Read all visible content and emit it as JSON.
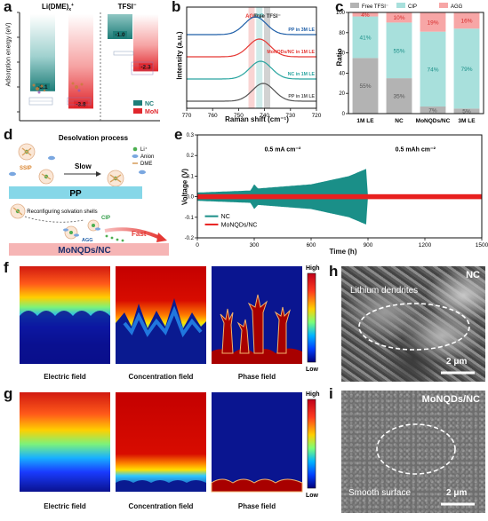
{
  "panels": {
    "a": "a",
    "b": "b",
    "c": "c",
    "d": "d",
    "e": "e",
    "f": "f",
    "g": "g",
    "h": "h",
    "i": "i"
  },
  "panel_a": {
    "ylabel": "Adsorption energy (eV)",
    "group1": "Li(DME)",
    "group1_sub": "x",
    "group1_sup": "+",
    "group2": "TFSI",
    "group2_sup": "−",
    "bars": [
      {
        "group": "Li(DME)x+",
        "material": "NC",
        "value": -3.1,
        "label": "-3.1"
      },
      {
        "group": "Li(DME)x+",
        "material": "MoN",
        "value": -3.8,
        "label": "-3.8"
      },
      {
        "group": "TFSI-",
        "material": "NC",
        "value": -1.0,
        "label": "-1.0"
      },
      {
        "group": "TFSI-",
        "material": "MoN",
        "value": -2.3,
        "label": "-2.3"
      }
    ],
    "legend": [
      "NC",
      "MoN"
    ],
    "colors": {
      "NC": "#2f8f8a",
      "MoN": "#e8363c"
    }
  },
  "chart_data": [
    {
      "type": "line",
      "title": "",
      "xlabel": "Raman shift (cm⁻¹)",
      "ylabel": "Intensity (a.u.)",
      "xlim": [
        770,
        720
      ],
      "xticks": [
        "770",
        "760",
        "750",
        "740",
        "730",
        "720"
      ],
      "bands": [
        {
          "name": "AGG",
          "x": 745,
          "color": "#e53935"
        },
        {
          "name": "CIP",
          "x": 742,
          "color": "#2aa5a0"
        },
        {
          "name": "Free TFSI⁻",
          "x": 739,
          "color": "#333333"
        }
      ],
      "series": [
        {
          "name": "PP in 3M LE",
          "peak": 743.5,
          "offset": 3,
          "color": "#1f5fa8"
        },
        {
          "name": "MoNQDs/NC in 1M LE",
          "peak": 742.0,
          "offset": 2,
          "color": "#e53935"
        },
        {
          "name": "NC in 1M LE",
          "peak": 741.5,
          "offset": 1,
          "color": "#2aa5a0"
        },
        {
          "name": "PP in 1M LE",
          "peak": 740.5,
          "offset": 0,
          "color": "#555555"
        }
      ]
    },
    {
      "type": "bar",
      "stacked": true,
      "xlabel": "",
      "ylabel": "Ratio",
      "ylim": [
        0,
        100
      ],
      "yticks": [
        "0",
        "20",
        "40",
        "60",
        "80",
        "100"
      ],
      "categories": [
        "1M LE",
        "NC",
        "MoNQDs/NC",
        "3M LE"
      ],
      "series": [
        {
          "name": "Free TFSI⁻",
          "values": [
            55,
            35,
            7,
            5
          ],
          "labels": [
            "55%",
            "35%",
            "7%",
            "5%"
          ],
          "color": "#b3b3b3",
          "label_color": "#555555"
        },
        {
          "name": "CIP",
          "values": [
            41,
            55,
            74,
            79
          ],
          "labels": [
            "41%",
            "55%",
            "74%",
            "79%"
          ],
          "color": "#a8e0dc",
          "label_color": "#1a8f88"
        },
        {
          "name": "AGG",
          "values": [
            4,
            10,
            19,
            16
          ],
          "labels": [
            "4%",
            "10%",
            "19%",
            "16%"
          ],
          "color": "#f7a6a6",
          "label_color": "#d62b2b"
        }
      ]
    },
    {
      "type": "area",
      "xlabel": "Time (h)",
      "ylabel": "Voltage (V)",
      "xlim": [
        0,
        1500
      ],
      "ylim": [
        -0.2,
        0.3
      ],
      "xticks": [
        "0",
        "300",
        "600",
        "900",
        "1200",
        "1500"
      ],
      "yticks": [
        "-0.2",
        "-0.1",
        "0.0",
        "0.1",
        "0.2",
        "0.3"
      ],
      "annotations": [
        "0.5 mA cm⁻²",
        "0.5 mAh cm⁻²"
      ],
      "series": [
        {
          "name": "NC",
          "color": "#1a8f88",
          "end": 900,
          "envelope": [
            [
              0,
              0.02
            ],
            [
              280,
              0.03
            ],
            [
              300,
              0.06
            ],
            [
              320,
              0.04
            ],
            [
              600,
              0.06
            ],
            [
              800,
              0.1
            ],
            [
              890,
              0.135
            ],
            [
              900,
              0.0
            ]
          ]
        },
        {
          "name": "MoNQDs/NC",
          "color": "#e8201f",
          "end": 1500,
          "envelope": [
            [
              0,
              0.012
            ],
            [
              1500,
              0.012
            ]
          ]
        }
      ]
    }
  ],
  "panel_d": {
    "title": "Desolvation process",
    "legend": [
      "Li⁺",
      "Anion",
      "DME"
    ],
    "ssip": "SSIP",
    "slow": "Slow",
    "pp": "PP",
    "reconfig": "Reconfiguring solvation shells",
    "cip": "CIP",
    "agg": "AGG",
    "fast": "Fast",
    "substrate": "MoNQDs/NC"
  },
  "panel_f": {
    "captions": [
      "Electric field",
      "Concentration field",
      "Phase field"
    ],
    "scale_high": "High",
    "scale_low": "Low"
  },
  "panel_g": {
    "captions": [
      "Electric field",
      "Concentration field",
      "Phase field"
    ],
    "scale_high": "High",
    "scale_low": "Low"
  },
  "panel_h": {
    "tag": "NC",
    "annotation": "Lithium dendrites",
    "scale": "2 μm"
  },
  "panel_i": {
    "tag": "MoNQDs/NC",
    "annotation": "Smooth surface",
    "scale": "2 μm"
  }
}
